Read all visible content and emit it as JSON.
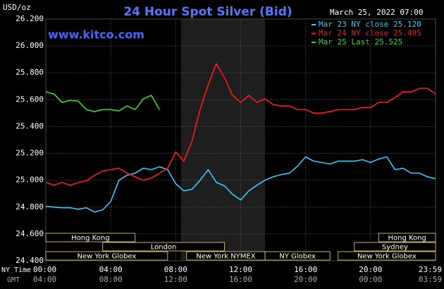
{
  "chart_data": {
    "type": "line",
    "title": "24 Hour Spot Silver (Bid)",
    "timestamp": "March 25, 2022 07:00",
    "watermark": "www.kitco.com",
    "y_label": "USD/oz",
    "x_label": "NY Time",
    "x2_label": "GMT",
    "x": [
      0,
      0.5,
      1,
      1.5,
      2,
      2.5,
      3,
      3.5,
      4,
      4.5,
      5,
      5.5,
      6,
      6.5,
      7,
      7.5,
      8,
      8.5,
      9,
      9.5,
      10,
      10.5,
      11,
      11.5,
      12,
      12.5,
      13,
      13.5,
      14,
      14.5,
      15,
      15.5,
      16,
      16.5,
      17,
      17.5,
      18,
      18.5,
      19,
      19.5,
      20,
      20.5,
      21,
      21.5,
      22,
      22.5,
      23,
      23.5,
      24
    ],
    "series": [
      {
        "name": "Mar 23 NY close 25.120",
        "color": "#33ccff",
        "values": [
          24.805,
          24.8,
          24.795,
          24.795,
          24.784,
          24.795,
          24.763,
          24.779,
          24.842,
          25.0,
          25.037,
          25.053,
          25.089,
          25.079,
          25.1,
          25.079,
          24.974,
          24.921,
          24.932,
          25.0,
          25.079,
          24.984,
          24.958,
          24.895,
          24.853,
          24.921,
          24.963,
          25.0,
          25.026,
          25.042,
          25.053,
          25.105,
          25.174,
          25.142,
          25.132,
          25.121,
          25.142,
          25.142,
          25.142,
          25.153,
          25.132,
          25.158,
          25.174,
          25.079,
          25.089,
          25.053,
          25.053,
          25.026,
          25.011
        ]
      },
      {
        "name": "Mar 24 NY close 25.495",
        "color": "#ff1a1a",
        "values": [
          24.984,
          24.963,
          24.984,
          24.963,
          24.984,
          24.995,
          25.037,
          25.068,
          25.079,
          25.089,
          25.053,
          25.026,
          25.0,
          25.016,
          25.053,
          25.089,
          25.211,
          25.142,
          25.289,
          25.526,
          25.711,
          25.868,
          25.763,
          25.632,
          25.579,
          25.632,
          25.579,
          25.605,
          25.563,
          25.553,
          25.553,
          25.526,
          25.526,
          25.5,
          25.5,
          25.511,
          25.526,
          25.526,
          25.526,
          25.542,
          25.542,
          25.579,
          25.579,
          25.616,
          25.658,
          25.658,
          25.684,
          25.684,
          25.642
        ]
      },
      {
        "name": "Mar 25 Last 25.525",
        "color": "#33dd33",
        "values": [
          25.658,
          25.642,
          25.579,
          25.595,
          25.589,
          25.526,
          25.511,
          25.526,
          25.526,
          25.516,
          25.553,
          25.526,
          25.605,
          25.632,
          25.526,
          null,
          null,
          null,
          null,
          null,
          null,
          null,
          null,
          null,
          null,
          null,
          null,
          null,
          null,
          null,
          null,
          null,
          null,
          null,
          null,
          null,
          null,
          null,
          null,
          null,
          null,
          null,
          null,
          null,
          null,
          null,
          null,
          null,
          null
        ]
      }
    ],
    "xlim": [
      0,
      24
    ],
    "ylim": [
      24.4,
      26.2
    ],
    "xticks": [
      {
        "value": 0,
        "label": "00:00"
      },
      {
        "value": 4,
        "label": "04:00"
      },
      {
        "value": 8,
        "label": "08:00"
      },
      {
        "value": 12,
        "label": "12:00"
      },
      {
        "value": 16,
        "label": "16:00"
      },
      {
        "value": 20,
        "label": "20:00"
      },
      {
        "value": 23.983,
        "label": "23:59"
      }
    ],
    "gmt_ticks": [
      "04:00",
      "08:00",
      "12:00",
      "16:00",
      "20:00",
      "00:00",
      "03:59"
    ],
    "yticks": [
      {
        "value": 24.4,
        "label": "24.400"
      },
      {
        "value": 24.6,
        "label": "24.600"
      },
      {
        "value": 24.8,
        "label": "24.800"
      },
      {
        "value": 25.0,
        "label": "25.000"
      },
      {
        "value": 25.2,
        "label": "25.200"
      },
      {
        "value": 25.4,
        "label": "25.400"
      },
      {
        "value": 25.6,
        "label": "25.600"
      },
      {
        "value": 25.8,
        "label": "25.800"
      },
      {
        "value": 26.0,
        "label": "26.000"
      },
      {
        "value": 26.2,
        "label": "26.200"
      }
    ],
    "highlight_x": [
      8.33,
      13.5
    ],
    "grid": true,
    "sessions": [
      [
        {
          "name": "Hong Kong",
          "start": 0,
          "end": 5.5
        },
        {
          "name": "Hong Kong",
          "start": 20.5,
          "end": 24
        }
      ],
      [
        {
          "name": "London",
          "start": 3.5,
          "end": 11
        },
        {
          "name": "Sydney",
          "start": 19,
          "end": 24
        }
      ],
      [
        {
          "name": "New York Globex",
          "start": 0,
          "end": 7.5
        },
        {
          "name": "New York NYMEX",
          "start": 8.67,
          "end": 13.5
        },
        {
          "name": "NY Globex",
          "start": 13.5,
          "end": 17.5
        },
        {
          "name": "New York Globex",
          "start": 18,
          "end": 24
        }
      ]
    ]
  }
}
